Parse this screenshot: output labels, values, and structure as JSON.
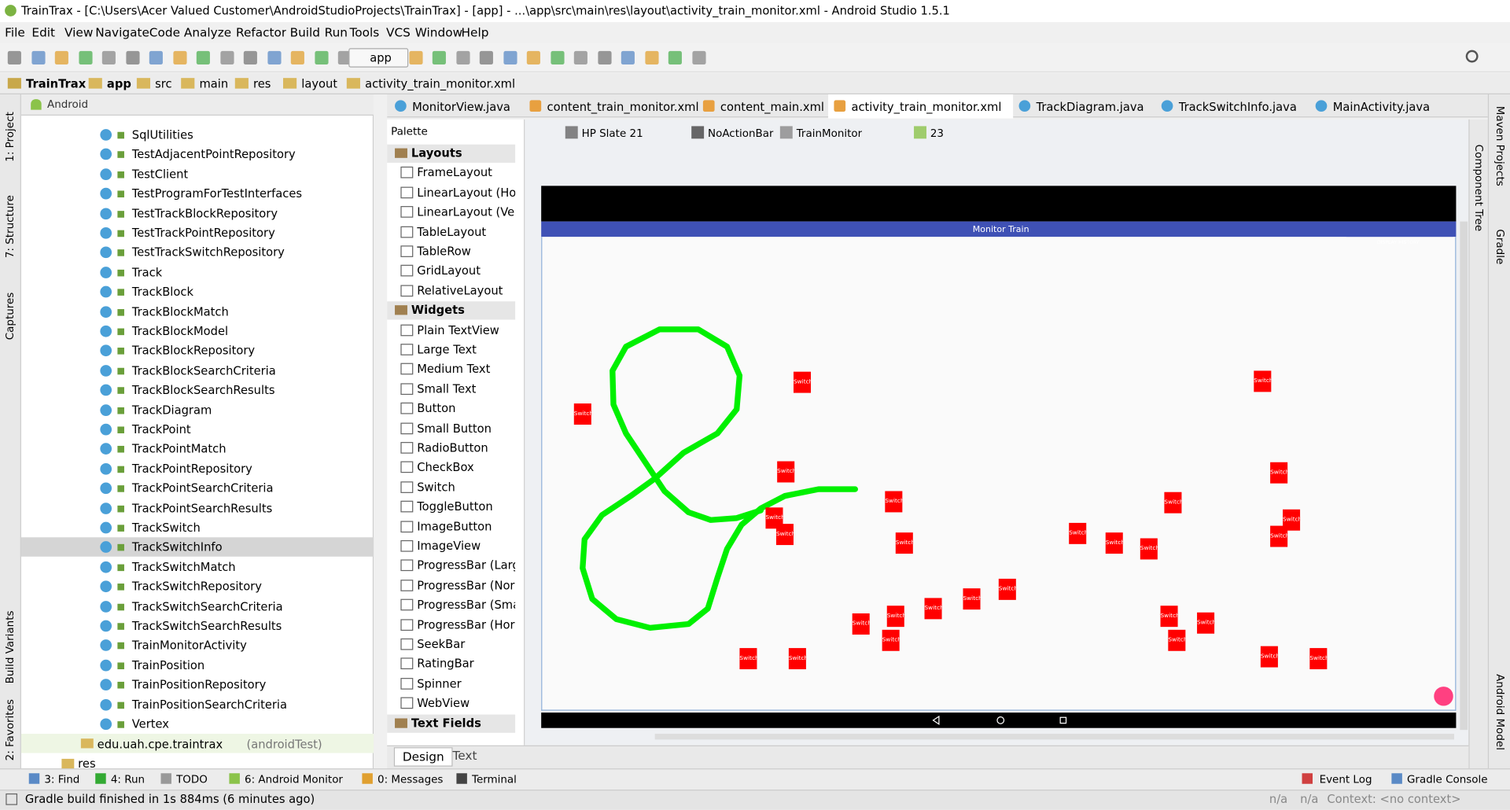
{
  "window_title": "TrainTrax - [C:\\Users\\Acer Valued Customer\\AndroidStudioProjects\\TrainTrax] - [app] - ...\\app\\src\\main\\res\\layout\\activity_train_monitor.xml - Android Studio 1.5.1",
  "menu": [
    "File",
    "Edit",
    "View",
    "Navigate",
    "Code",
    "Analyze",
    "Refactor",
    "Build",
    "Run",
    "Tools",
    "VCS",
    "Window",
    "Help"
  ],
  "toolbar": {
    "run_config": "app"
  },
  "breadcrumbs": [
    "TrainTrax",
    "app",
    "src",
    "main",
    "res",
    "layout",
    "activity_train_monitor.xml"
  ],
  "left_tool_tabs": [
    "1: Project",
    "7: Structure",
    "Captures",
    "Build Variants",
    "2: Favorites"
  ],
  "right_tool_tabs": [
    "Maven Projects",
    "Gradle",
    "Android Model"
  ],
  "component_tree": "Component Tree",
  "project_panel": {
    "view": "Android",
    "items": [
      "SqlUtilities",
      "TestAdjacentPointRepository",
      "TestClient",
      "TestProgramForTestInterfaces",
      "TestTrackBlockRepository",
      "TestTrackPointRepository",
      "TestTrackSwitchRepository",
      "Track",
      "TrackBlock",
      "TrackBlockMatch",
      "TrackBlockModel",
      "TrackBlockRepository",
      "TrackBlockSearchCriteria",
      "TrackBlockSearchResults",
      "TrackDiagram",
      "TrackPoint",
      "TrackPointMatch",
      "TrackPointRepository",
      "TrackPointSearchCriteria",
      "TrackPointSearchResults",
      "TrackSwitch",
      "TrackSwitchInfo",
      "TrackSwitchMatch",
      "TrackSwitchRepository",
      "TrackSwitchSearchCriteria",
      "TrackSwitchSearchResults",
      "TrainMonitorActivity",
      "TrainPosition",
      "TrainPositionRepository",
      "TrainPositionSearchCriteria",
      "Vertex"
    ],
    "package": "edu.uah.cpe.traintrax",
    "package_note": "(androidTest)",
    "folder": "res"
  },
  "editor_tabs": [
    "MonitorView.java",
    "content_train_monitor.xml",
    "content_main.xml",
    "activity_train_monitor.xml",
    "TrackDiagram.java",
    "TrackSwitchInfo.java",
    "MainActivity.java"
  ],
  "palette": {
    "title": "Palette",
    "groups": [
      {
        "name": "Layouts",
        "items": [
          "FrameLayout",
          "LinearLayout (Horizontal)",
          "LinearLayout (Vertical)",
          "TableLayout",
          "TableRow",
          "GridLayout",
          "RelativeLayout"
        ]
      },
      {
        "name": "Widgets",
        "items": [
          "Plain TextView",
          "Large Text",
          "Medium Text",
          "Small Text",
          "Button",
          "Small Button",
          "RadioButton",
          "CheckBox",
          "Switch",
          "ToggleButton",
          "ImageButton",
          "ImageView",
          "ProgressBar (Large)",
          "ProgressBar (Normal)",
          "ProgressBar (Small)",
          "ProgressBar (Horizontal)",
          "SeekBar",
          "RatingBar",
          "Spinner",
          "WebView"
        ]
      },
      {
        "name": "Text Fields",
        "items": []
      }
    ]
  },
  "design_toolbar": [
    "HP Slate 21",
    "NoActionBar",
    "TrainMonitor",
    "23"
  ],
  "device": {
    "app_title": "Monitor Train",
    "button": "DISPLAY HISTORY",
    "switches": [
      "Switch",
      "Switch",
      "Switch",
      "Switch",
      "Switch",
      "Switch",
      "Switch",
      "Switch",
      "Switch",
      "Switch",
      "Switch",
      "Switch",
      "Switch",
      "Switch",
      "Switch",
      "Switch",
      "Switch",
      "Switch",
      "Switch",
      "Switch",
      "Switch",
      "Switch",
      "Switch",
      "Switch",
      "Switch",
      "Switch",
      "Switch",
      "Switch"
    ]
  },
  "editor_mode_tabs": [
    "Design",
    "Text"
  ],
  "bottom_tool_tabs": [
    "3: Find",
    "4: Run",
    "TODO",
    "6: Android Monitor",
    "0: Messages",
    "Terminal"
  ],
  "bottom_right_tabs": [
    "Event Log",
    "Gradle Console"
  ],
  "status": {
    "message": "Gradle build finished in 1s 884ms (6 minutes ago)",
    "fields": [
      "n/a",
      "n/a",
      "Context: <no context>"
    ]
  }
}
